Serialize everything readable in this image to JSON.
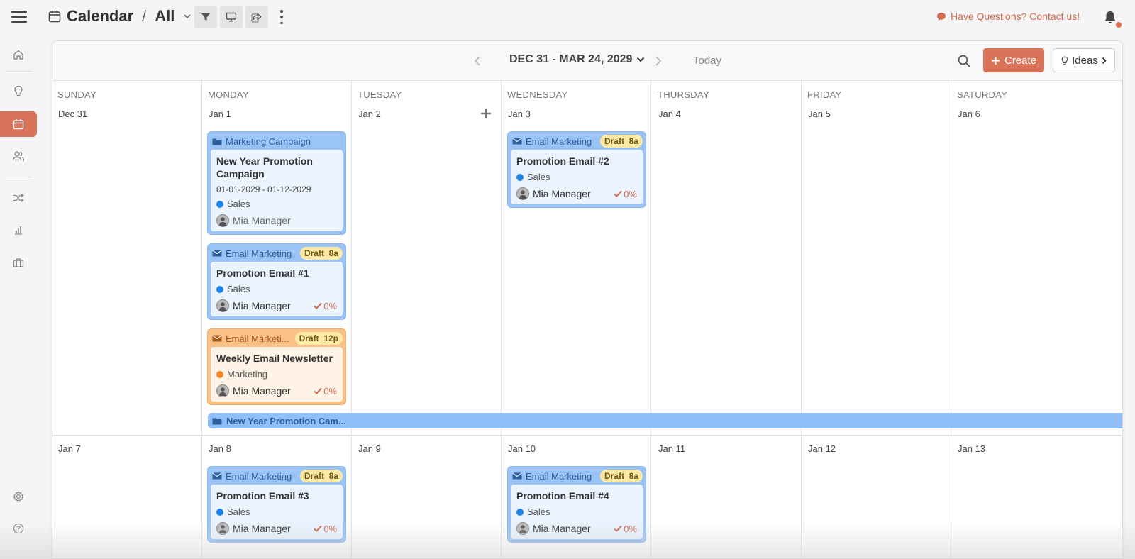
{
  "header": {
    "title": "Calendar",
    "view": "All",
    "contact_text": "Have Questions? Contact us!"
  },
  "colors": {
    "accent": "#d9735a",
    "event_blue": "#9bc4f6",
    "event_orange": "#f9c185",
    "badge": "#fde9a6"
  },
  "sidebar": {
    "icons": [
      "home-icon",
      "lightbulb-icon",
      "calendar-icon",
      "users-icon",
      "shuffle-icon",
      "bar-chart-icon",
      "briefcase-icon",
      "gear-icon",
      "help-icon"
    ],
    "active": "calendar-icon"
  },
  "calendar": {
    "range": "DEC 31 - MAR 24, 2029",
    "today_label": "Today",
    "create_label": "Create",
    "ideas_label": "Ideas",
    "days": [
      "SUNDAY",
      "MONDAY",
      "TUESDAY",
      "WEDNESDAY",
      "THURSDAY",
      "FRIDAY",
      "SATURDAY"
    ],
    "week1": [
      "Dec 31",
      "Jan 1",
      "Jan 2",
      "Jan 3",
      "Jan 4",
      "Jan 5",
      "Jan 6"
    ],
    "week2": [
      "Jan 7",
      "Jan 8",
      "Jan 9",
      "Jan 10",
      "Jan 11",
      "Jan 12",
      "Jan 13"
    ]
  },
  "events": {
    "campaign": {
      "type": "Marketing Campaign",
      "title": "New Year Promotion Campaign",
      "dates": "01-01-2029 - 01-12-2029",
      "tag": "Sales",
      "owner": "Mia Manager"
    },
    "email1": {
      "type": "Email Marketing",
      "status": "Draft",
      "time": "8a",
      "title": "Promotion Email #1",
      "tag": "Sales",
      "owner": "Mia Manager",
      "progress": "0%"
    },
    "newsletter": {
      "type": "Email Marketi...",
      "status": "Draft",
      "time": "12p",
      "title": "Weekly Email Newsletter",
      "tag": "Marketing",
      "owner": "Mia Manager",
      "progress": "0%"
    },
    "email2": {
      "type": "Email Marketing",
      "status": "Draft",
      "time": "8a",
      "title": "Promotion Email #2",
      "tag": "Sales",
      "owner": "Mia Manager",
      "progress": "0%"
    },
    "email3": {
      "type": "Email Marketing",
      "status": "Draft",
      "time": "8a",
      "title": "Promotion Email #3",
      "tag": "Sales",
      "owner": "Mia Manager",
      "progress": "0%"
    },
    "email4": {
      "type": "Email Marketing",
      "status": "Draft",
      "time": "8a",
      "title": "Promotion Email #4",
      "tag": "Sales",
      "owner": "Mia Manager",
      "progress": "0%"
    },
    "span_bar": "New Year Promotion Cam..."
  }
}
